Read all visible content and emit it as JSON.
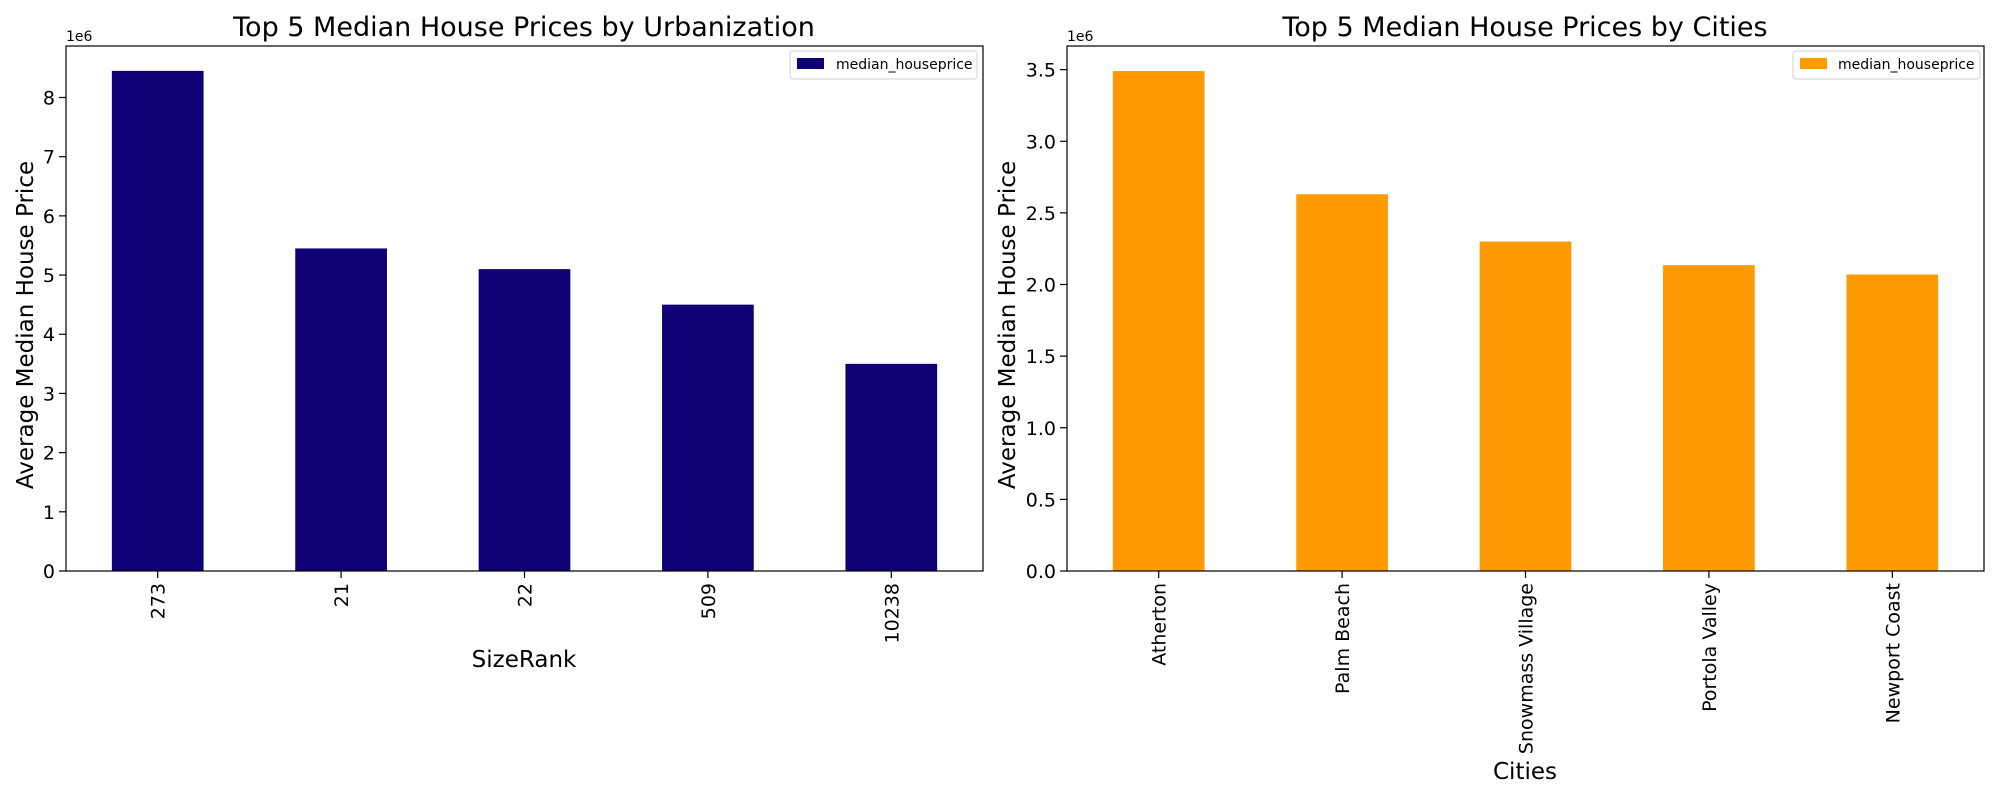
{
  "chart_data": [
    {
      "type": "bar",
      "title": "Top 5 Median House Prices by Urbanization",
      "xlabel": "SizeRank",
      "ylabel": "Average Median House Price",
      "y_offset_text": "1e6",
      "categories": [
        "273",
        "21",
        "22",
        "509",
        "10238"
      ],
      "series": [
        {
          "name": "median_houseprice",
          "values": [
            8450000,
            5450000,
            5100000,
            4500000,
            3500000
          ]
        }
      ],
      "ylim": [
        0,
        8870000
      ],
      "yticks": [
        0,
        1000000,
        2000000,
        3000000,
        4000000,
        5000000,
        6000000,
        7000000,
        8000000
      ],
      "ytick_labels": [
        "0",
        "1",
        "2",
        "3",
        "4",
        "5",
        "6",
        "7",
        "8"
      ],
      "color": "#100076",
      "legend": "top-right",
      "grid": false
    },
    {
      "type": "bar",
      "title": "Top 5 Median House Prices by Cities",
      "xlabel": "Cities",
      "ylabel": "Average Median House Price",
      "y_offset_text": "1e6",
      "categories": [
        "Atherton",
        "Palm Beach",
        "Snowmass Village",
        "Portola Valley",
        "Newport Coast"
      ],
      "series": [
        {
          "name": "median_houseprice",
          "values": [
            3490000,
            2630000,
            2300000,
            2135000,
            2070000
          ]
        }
      ],
      "ylim": [
        0,
        3665000
      ],
      "yticks": [
        0,
        500000,
        1000000,
        1500000,
        2000000,
        2500000,
        3000000,
        3500000
      ],
      "ytick_labels": [
        "0.0",
        "0.5",
        "1.0",
        "1.5",
        "2.0",
        "2.5",
        "3.0",
        "3.5"
      ],
      "color": "#FF9A03",
      "legend": "top-right",
      "grid": false
    }
  ]
}
